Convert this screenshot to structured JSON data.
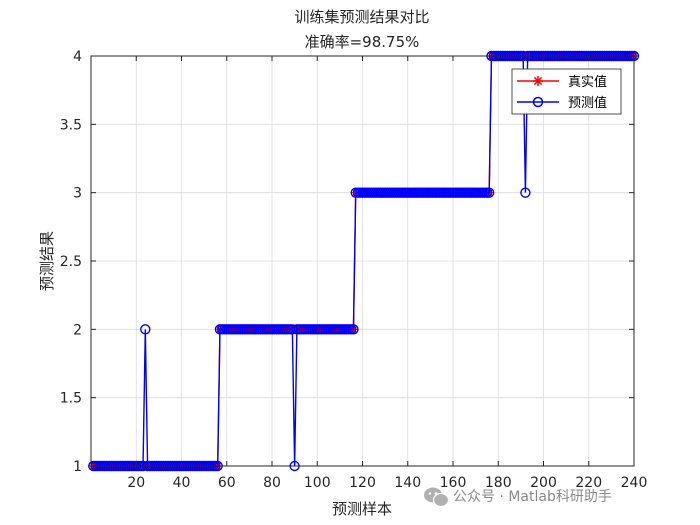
{
  "chart_data": {
    "type": "line",
    "title": "训练集预测结果对比",
    "subtitle": "准确率=98.75%",
    "xlabel": "预测样本",
    "ylabel": "预测结果",
    "xlim": [
      0,
      240
    ],
    "ylim": [
      1,
      4
    ],
    "xticks": [
      20,
      40,
      60,
      80,
      100,
      120,
      140,
      160,
      180,
      200,
      220,
      240
    ],
    "yticks": [
      1,
      1.5,
      2,
      2.5,
      3,
      3.5,
      4
    ],
    "xtick_labels": [
      "20",
      "40",
      "60",
      "80",
      "100",
      "120",
      "140",
      "160",
      "180",
      "200",
      "220",
      "240"
    ],
    "ytick_labels": [
      "1",
      "1.5",
      "2",
      "2.5",
      "3",
      "3.5",
      "4"
    ],
    "grid": true,
    "legend_position": "top-right",
    "series": [
      {
        "name": "真实值",
        "color": "#ff0000",
        "marker": "asterisk",
        "segments": [
          {
            "x_start": 1,
            "x_end": 56,
            "y": 1
          },
          {
            "x_start": 57,
            "x_end": 116,
            "y": 2
          },
          {
            "x_start": 117,
            "x_end": 176,
            "y": 3
          },
          {
            "x_start": 177,
            "x_end": 240,
            "y": 4
          }
        ],
        "exceptions": []
      },
      {
        "name": "预测值",
        "color": "#0000ff",
        "marker": "circle",
        "segments": [
          {
            "x_start": 1,
            "x_end": 56,
            "y": 1
          },
          {
            "x_start": 57,
            "x_end": 116,
            "y": 2
          },
          {
            "x_start": 117,
            "x_end": 176,
            "y": 3
          },
          {
            "x_start": 177,
            "x_end": 240,
            "y": 4
          }
        ],
        "exceptions": [
          {
            "x": 24,
            "y": 2
          },
          {
            "x": 90,
            "y": 1
          },
          {
            "x": 192,
            "y": 3
          }
        ]
      }
    ]
  },
  "watermark": {
    "icon": "wechat-icon",
    "text": "公众号 · Matlab科研助手"
  }
}
